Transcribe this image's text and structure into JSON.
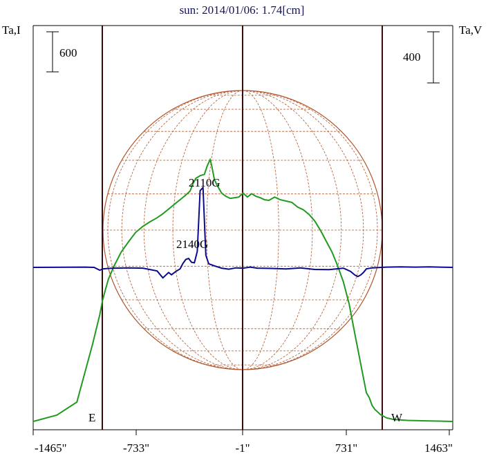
{
  "chart_data": {
    "type": "line",
    "title": "sun: 2014/01/06: 1.74[cm]",
    "left_axis_label": "Ta,I",
    "right_axis_label": "Ta,V",
    "left_scale_bar": "600",
    "right_scale_bar": "400",
    "limb_labels": {
      "east": "E",
      "west": "W"
    },
    "x_ticks": [
      "-1465\"",
      "-733\"",
      "-1\"",
      "731\"",
      "1463\""
    ],
    "annotations": [
      "2110G",
      "2140G"
    ],
    "colors": {
      "stokes_i": "#1e9a1e",
      "stokes_v": "#0a0a8c",
      "solar_disk": "#b0552a",
      "limb_lines": "#3a0a0a",
      "title": "#14145a"
    },
    "series": [
      {
        "role": "stokes_i",
        "x": [
          -1465,
          -1300,
          -1160,
          -1050,
          -1000,
          -980,
          -960,
          -940,
          -900,
          -850,
          -800,
          -750,
          -700,
          -650,
          -600,
          -560,
          -520,
          -480,
          -440,
          -400,
          -370,
          -350,
          -330,
          -300,
          -270,
          -250,
          -230,
          -220,
          -200,
          -180,
          -150,
          -120,
          -90,
          -60,
          -30,
          0,
          30,
          60,
          90,
          120,
          150,
          180,
          220,
          260,
          300,
          340,
          380,
          420,
          460,
          500,
          540,
          580,
          620,
          660,
          700,
          740,
          780,
          820,
          860,
          880,
          900,
          920,
          960,
          1000,
          1050,
          1150,
          1300,
          1463
        ],
        "y": [
          0,
          95,
          290,
          1160,
          1600,
          1820,
          1980,
          2130,
          2330,
          2540,
          2690,
          2830,
          2920,
          2990,
          3050,
          3110,
          3180,
          3250,
          3320,
          3390,
          3450,
          3560,
          3640,
          3680,
          3700,
          3830,
          3920,
          3840,
          3620,
          3530,
          3420,
          3370,
          3340,
          3350,
          3360,
          3420,
          3360,
          3410,
          3370,
          3350,
          3320,
          3310,
          3360,
          3320,
          3300,
          3280,
          3210,
          3170,
          3100,
          3000,
          2860,
          2700,
          2540,
          2330,
          2090,
          1760,
          1310,
          870,
          430,
          360,
          240,
          180,
          100,
          55,
          30,
          15,
          8,
          0
        ],
        "name": ""
      },
      {
        "role": "stokes_v",
        "x": [
          -1465,
          -1100,
          -1040,
          -1000,
          -980,
          -940,
          -900,
          -800,
          -700,
          -600,
          -560,
          -520,
          -500,
          -470,
          -440,
          -420,
          -400,
          -380,
          -360,
          -340,
          -320,
          -300,
          -280,
          -260,
          -240,
          -200,
          -150,
          -100,
          -50,
          0,
          50,
          100,
          200,
          300,
          400,
          500,
          600,
          700,
          750,
          780,
          800,
          820,
          840,
          860,
          900,
          1000,
          1100,
          1200,
          1300,
          1463
        ],
        "y": [
          0,
          2,
          0,
          -22,
          -12,
          -8,
          -6,
          -4,
          -6,
          -28,
          -82,
          -40,
          -58,
          -32,
          -12,
          30,
          62,
          70,
          40,
          36,
          125,
          600,
          625,
          95,
          28,
          12,
          -6,
          -14,
          -4,
          -6,
          2,
          -6,
          -8,
          -12,
          -4,
          -16,
          -18,
          -6,
          -32,
          -60,
          -72,
          -60,
          -40,
          -12,
          -4,
          2,
          4,
          2,
          4,
          0
        ],
        "name": ""
      }
    ]
  }
}
